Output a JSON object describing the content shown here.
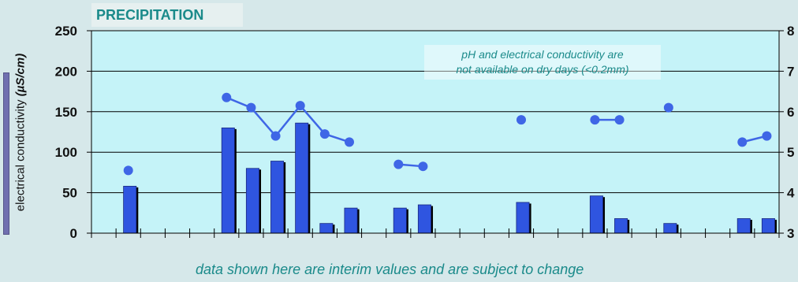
{
  "chart_data": {
    "type": "bar+line",
    "title": "PRECIPITATION",
    "ylabel": "electrical conductivity",
    "ylabel_unit": "(µS/cm)",
    "ylim": [
      0,
      250
    ],
    "yticks": [
      0,
      50,
      100,
      150,
      200,
      250
    ],
    "y2lim": [
      3,
      8
    ],
    "y2ticks": [
      3,
      4,
      5,
      6,
      7,
      8
    ],
    "grid": true,
    "days": 28,
    "series": [
      {
        "kind": "bar",
        "color": "#2f55e0",
        "values": [
          null,
          58,
          null,
          null,
          null,
          130,
          80,
          89,
          136,
          12,
          31,
          null,
          31,
          35,
          null,
          null,
          null,
          38,
          null,
          null,
          46,
          18,
          null,
          12,
          null,
          null,
          18,
          18
        ]
      },
      {
        "kind": "line",
        "color": "#3f66e6",
        "values": [
          null,
          4.55,
          null,
          null,
          null,
          6.35,
          6.1,
          5.4,
          6.15,
          5.45,
          5.25,
          null,
          4.7,
          4.65,
          null,
          null,
          null,
          5.8,
          null,
          null,
          5.8,
          5.8,
          null,
          6.1,
          null,
          null,
          5.25,
          5.4
        ]
      }
    ],
    "annotation": [
      "pH and electrical conductivity are",
      "not available on dry days (<0.2mm)"
    ]
  },
  "footnote": "data shown here are interim values and are subject to change",
  "colors": {
    "background": "#d6e8ea",
    "plot_background": "#c5f3f8",
    "accent": "#1a8a8a"
  }
}
